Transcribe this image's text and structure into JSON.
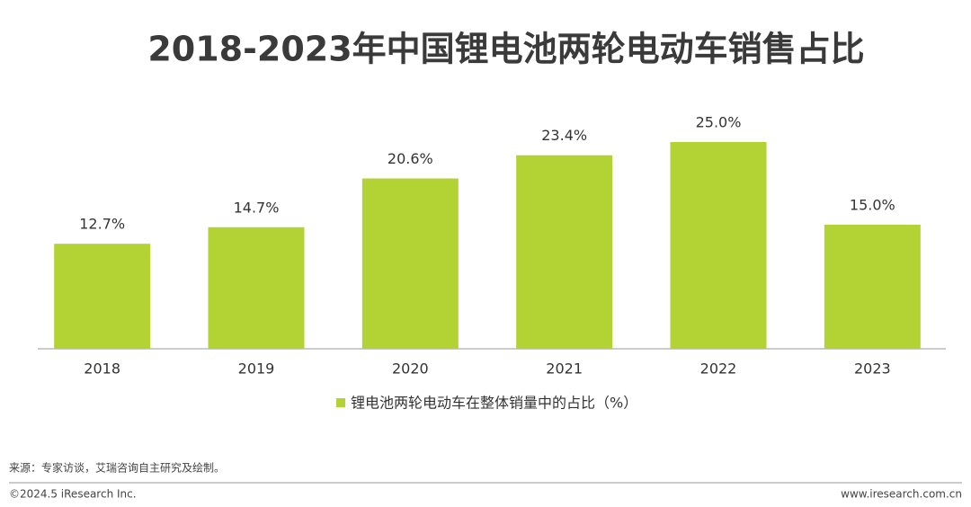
{
  "chart_data": {
    "type": "bar",
    "title": "2018-2023年中国锂电池两轮电动车销售占比",
    "categories": [
      "2018",
      "2019",
      "2020",
      "2021",
      "2022",
      "2023"
    ],
    "series": [
      {
        "name": "锂电池两轮电动车在整体销量中的占比（%）",
        "color": "#b3d335",
        "values": [
          12.7,
          14.7,
          20.6,
          23.4,
          25.0,
          15.0
        ],
        "value_labels": [
          "12.7%",
          "14.7%",
          "20.6%",
          "23.4%",
          "25.0%",
          "15.0%"
        ]
      }
    ],
    "source": "来源：专家访谈，艾瑞咨询自主研究及绘制。",
    "copyright": "©2024.5 iResearch Inc.",
    "website": "www.iresearch.com.cn"
  }
}
